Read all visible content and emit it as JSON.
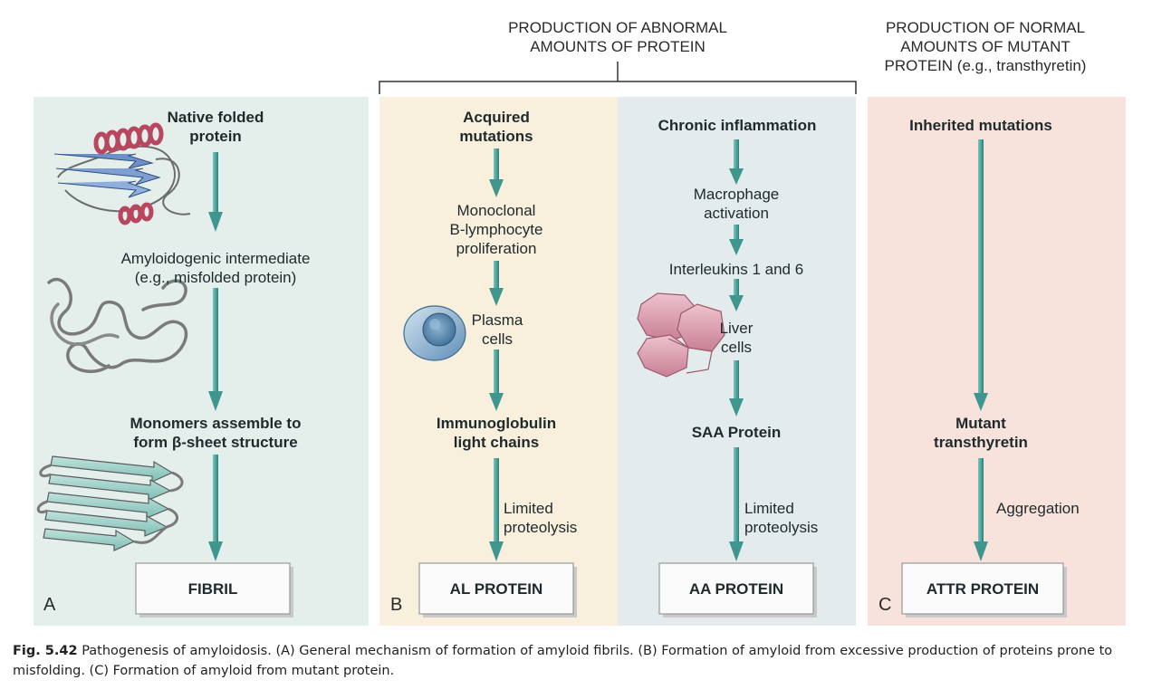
{
  "headers": {
    "abnormal": [
      "PRODUCTION OF ABNORMAL",
      "AMOUNTS OF PROTEIN"
    ],
    "normal": [
      "PRODUCTION OF NORMAL",
      "AMOUNTS OF MUTANT",
      "PROTEIN (e.g., transthyretin)"
    ]
  },
  "panelA": {
    "letter": "A",
    "step1": [
      "Native folded",
      "protein"
    ],
    "step2": [
      "Amyloidogenic intermediate",
      "(e.g., misfolded protein)"
    ],
    "step3": [
      "Monomers assemble to",
      "form β-sheet structure"
    ],
    "result": "FIBRIL"
  },
  "panelB1": {
    "letter": "B",
    "step1": [
      "Acquired",
      "mutations"
    ],
    "step2": [
      "Monoclonal",
      "B-lymphocyte",
      "proliferation"
    ],
    "step3": [
      "Plasma",
      "cells"
    ],
    "step4": [
      "Immunoglobulin",
      "light chains"
    ],
    "step5": [
      "Limited",
      "proteolysis"
    ],
    "result": "AL PROTEIN"
  },
  "panelB2": {
    "step1": "Chronic inflammation",
    "step2": [
      "Macrophage",
      "activation"
    ],
    "step3": "Interleukins 1 and 6",
    "step4": [
      "Liver",
      "cells"
    ],
    "step5": "SAA Protein",
    "step6": [
      "Limited",
      "proteolysis"
    ],
    "result": "AA PROTEIN"
  },
  "panelC": {
    "letter": "C",
    "step1": "Inherited mutations",
    "step2": [
      "Mutant",
      "transthyretin"
    ],
    "step3": "Aggregation",
    "result": "ATTR PROTEIN"
  },
  "caption": {
    "fig": "Fig. 5.42",
    "text": "Pathogenesis of amyloidosis. (A) General mechanism of formation of amyloid fibrils. (B) Formation of amyloid from excessive production of proteins prone to misfolding. (C) Formation of amyloid from mutant protein."
  },
  "colors": {
    "panelA_bg": "#e4efec",
    "panelB1_bg": "#f8efdd",
    "panelB2_bg": "#e3ebec",
    "panelC_bg": "#f8e3dc",
    "arrow": "#4fa8a0",
    "arrow_dark": "#2f7f78",
    "box_fill": "#fbfbfb",
    "box_shadow": "#c9c9c9"
  },
  "icons": {
    "native_protein": "ribbon-protein-icon",
    "misfolded_protein": "coil-protein-icon",
    "beta_sheet": "beta-sheet-icon",
    "plasma_cell": "plasma-cell-icon",
    "liver_cells": "liver-cells-icon"
  }
}
